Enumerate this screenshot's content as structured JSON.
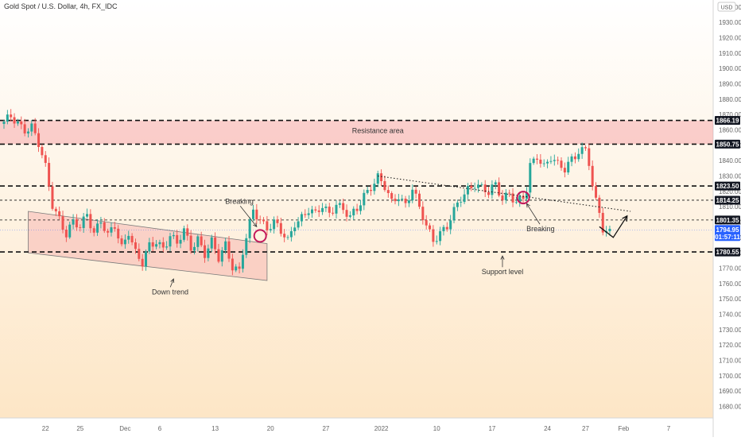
{
  "symbol_title": "Gold Spot / U.S. Dollar, 4h, FX_IDC",
  "currency": "USD",
  "colors": {
    "bg_top": "#ffffff",
    "bg_bottom": "#fde6c6",
    "up": "#26a69a",
    "down": "#ef5350",
    "zone": "rgba(244,143,150,0.40)",
    "channel": "rgba(244,143,150,0.32)",
    "circle": "#c2185b",
    "price_tag": "#2962ff",
    "level_tag": "#131722"
  },
  "chart_data": {
    "type": "candlestick",
    "title": "Gold Spot / U.S. Dollar, 4h, FX_IDC",
    "ylim": [
      1673,
      1942
    ],
    "y_ticks": [
      1680,
      1690,
      1700,
      1710,
      1720,
      1730,
      1740,
      1750,
      1760,
      1770,
      1780,
      1790,
      1800,
      1810,
      1820,
      1830,
      1840,
      1850,
      1860,
      1870,
      1880,
      1890,
      1900,
      1910,
      1920,
      1930,
      1940
    ],
    "x_ticks": [
      {
        "label": "22",
        "i": 12
      },
      {
        "label": "25",
        "i": 22
      },
      {
        "label": "Dec",
        "i": 35
      },
      {
        "label": "6",
        "i": 45
      },
      {
        "label": "13",
        "i": 61
      },
      {
        "label": "20",
        "i": 77
      },
      {
        "label": "27",
        "i": 93
      },
      {
        "label": "2022",
        "i": 109
      },
      {
        "label": "10",
        "i": 125
      },
      {
        "label": "17",
        "i": 141
      },
      {
        "label": "24",
        "i": 157
      },
      {
        "label": "27",
        "i": 168
      },
      {
        "label": "Feb",
        "i": 179
      },
      {
        "label": "7",
        "i": 192
      }
    ],
    "candle_anchors": [
      [
        0,
        1864
      ],
      [
        2,
        1868
      ],
      [
        4,
        1865
      ],
      [
        6,
        1861
      ],
      [
        8,
        1862
      ],
      [
        10,
        1850
      ],
      [
        12,
        1835
      ],
      [
        14,
        1812
      ],
      [
        16,
        1803
      ],
      [
        18,
        1792
      ],
      [
        20,
        1799
      ],
      [
        22,
        1796
      ],
      [
        24,
        1806
      ],
      [
        26,
        1794
      ],
      [
        28,
        1801
      ],
      [
        30,
        1790
      ],
      [
        32,
        1797
      ],
      [
        34,
        1784
      ],
      [
        36,
        1795
      ],
      [
        38,
        1780
      ],
      [
        40,
        1772
      ],
      [
        42,
        1784
      ],
      [
        44,
        1788
      ],
      [
        46,
        1784
      ],
      [
        48,
        1791
      ],
      [
        50,
        1785
      ],
      [
        52,
        1794
      ],
      [
        54,
        1784
      ],
      [
        56,
        1790
      ],
      [
        58,
        1779
      ],
      [
        60,
        1786
      ],
      [
        62,
        1776
      ],
      [
        64,
        1786
      ],
      [
        66,
        1772
      ],
      [
        68,
        1768
      ],
      [
        69,
        1780
      ],
      [
        70,
        1789
      ],
      [
        72,
        1807
      ],
      [
        74,
        1802
      ],
      [
        76,
        1797
      ],
      [
        78,
        1800
      ],
      [
        80,
        1793
      ],
      [
        82,
        1787
      ],
      [
        84,
        1800
      ],
      [
        86,
        1804
      ],
      [
        88,
        1808
      ],
      [
        90,
        1804
      ],
      [
        92,
        1810
      ],
      [
        94,
        1806
      ],
      [
        96,
        1813
      ],
      [
        98,
        1808
      ],
      [
        100,
        1802
      ],
      [
        102,
        1808
      ],
      [
        104,
        1818
      ],
      [
        106,
        1824
      ],
      [
        108,
        1829
      ],
      [
        110,
        1822
      ],
      [
        112,
        1812
      ],
      [
        114,
        1818
      ],
      [
        116,
        1812
      ],
      [
        118,
        1822
      ],
      [
        120,
        1808
      ],
      [
        122,
        1797
      ],
      [
        124,
        1789
      ],
      [
        126,
        1794
      ],
      [
        128,
        1797
      ],
      [
        130,
        1806
      ],
      [
        132,
        1815
      ],
      [
        134,
        1822
      ],
      [
        136,
        1826
      ],
      [
        138,
        1822
      ],
      [
        140,
        1818
      ],
      [
        142,
        1824
      ],
      [
        144,
        1816
      ],
      [
        146,
        1820
      ],
      [
        148,
        1812
      ],
      [
        150,
        1815
      ],
      [
        151,
        1820
      ],
      [
        152,
        1836
      ],
      [
        153,
        1840
      ],
      [
        154,
        1844
      ],
      [
        156,
        1837
      ],
      [
        158,
        1842
      ],
      [
        160,
        1836
      ],
      [
        162,
        1834
      ],
      [
        164,
        1842
      ],
      [
        166,
        1847
      ],
      [
        168,
        1847
      ],
      [
        169,
        1838
      ],
      [
        170,
        1822
      ],
      [
        171,
        1812
      ],
      [
        172,
        1806
      ],
      [
        173,
        1796
      ],
      [
        174,
        1794
      ],
      [
        175,
        1795
      ]
    ],
    "channel_upper": [
      [
        7,
        1807
      ],
      [
        76,
        1786
      ]
    ],
    "channel_lower": [
      [
        7,
        1780
      ],
      [
        76,
        1762
      ]
    ],
    "resistance_band": [
      1850.75,
      1866.19
    ],
    "levels": [
      {
        "price": 1866.19,
        "style": "dashed-bold",
        "tag": "1866.19"
      },
      {
        "price": 1850.75,
        "style": "dashed-bold",
        "tag": "1850.75"
      },
      {
        "price": 1823.5,
        "style": "dashed-bold",
        "tag": "1823.50"
      },
      {
        "price": 1814.25,
        "style": "dashed-thin",
        "tag": "1814.25"
      },
      {
        "price": 1801.35,
        "style": "dashed-thin",
        "tag": "1801.35"
      },
      {
        "price": 1780.55,
        "style": "dashed-bold",
        "tag": "1780.55"
      }
    ],
    "last_price": {
      "value": 1794.95,
      "price_label": "1794.95",
      "countdown": "01:57:11"
    },
    "dotted_trendline": [
      [
        108,
        1830
      ],
      [
        181,
        1807
      ]
    ],
    "breakout_circles": [
      {
        "i": 74,
        "price": 1791
      },
      {
        "i": 150,
        "price": 1816
      }
    ],
    "projection_check": [
      [
        172,
        1797
      ],
      [
        176,
        1790
      ],
      [
        180,
        1804
      ]
    ],
    "annotations": [
      {
        "name": "resistance-area-label",
        "text": "Resistance area",
        "i": 108,
        "price": 1858
      },
      {
        "name": "breaking-label-1",
        "text": "Breaking",
        "i": 68,
        "price": 1812,
        "arrow_to": [
          73,
          1797
        ]
      },
      {
        "name": "breaking-label-2",
        "text": "Breaking",
        "i": 155,
        "price": 1794,
        "arrow_to": [
          151,
          1812
        ]
      },
      {
        "name": "down-trend-label",
        "text": "Down trend",
        "i": 48,
        "price": 1753,
        "arrow_to": [
          49,
          1763
        ]
      },
      {
        "name": "support-level-label",
        "text": "Support level",
        "i": 144,
        "price": 1766,
        "arrow_to": [
          144,
          1778
        ]
      }
    ]
  }
}
